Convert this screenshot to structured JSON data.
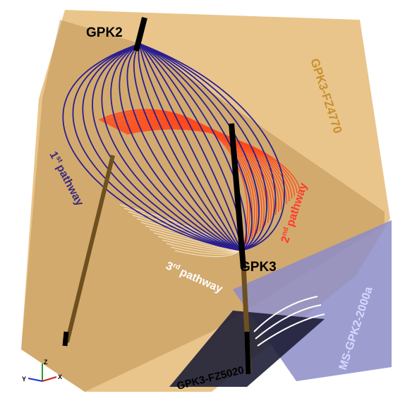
{
  "wells": [
    {
      "label": "GPK2"
    },
    {
      "label": "GPK3"
    }
  ],
  "faults": [
    {
      "label": "GPK3-FZ4770"
    },
    {
      "label": "GPK3-FZ5020"
    },
    {
      "label": "MS-GPK2-2000a"
    }
  ],
  "pathways": [
    {
      "number": "1",
      "suffix": "st",
      "text": "pathway"
    },
    {
      "number": "2",
      "suffix": "nd",
      "text": "pathway"
    },
    {
      "number": "3",
      "suffix": "rd",
      "text": "pathway"
    }
  ],
  "axes": {
    "z": "Z",
    "y": "Y",
    "x": "X"
  }
}
